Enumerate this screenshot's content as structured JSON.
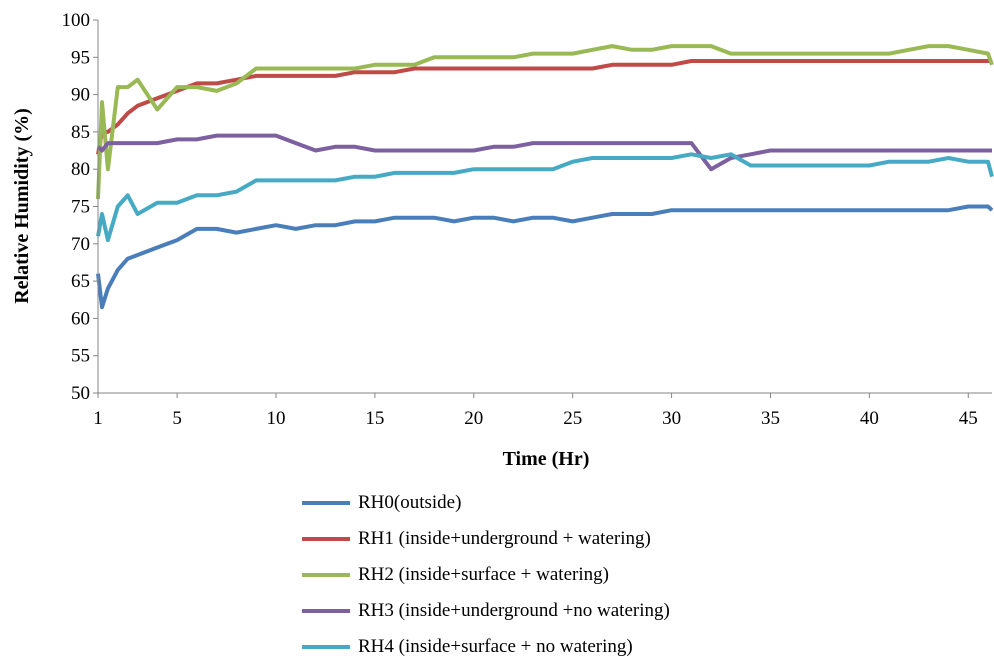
{
  "chart_data": {
    "type": "line",
    "title": "",
    "xlabel": "Time (Hr)",
    "ylabel": "Relative Humidity (%)",
    "xlim": [
      1,
      46.2
    ],
    "ylim": [
      50,
      100
    ],
    "x_ticks": [
      1,
      5,
      10,
      15,
      20,
      25,
      30,
      35,
      40,
      45
    ],
    "y_ticks": [
      50,
      55,
      60,
      65,
      70,
      75,
      80,
      85,
      90,
      95,
      100
    ],
    "grid": false,
    "legend_position": "bottom",
    "x": [
      1,
      1.2,
      1.5,
      2,
      2.5,
      3,
      4,
      5,
      6,
      7,
      8,
      9,
      10,
      11,
      12,
      13,
      14,
      15,
      16,
      17,
      18,
      19,
      20,
      21,
      22,
      23,
      24,
      25,
      26,
      27,
      28,
      29,
      30,
      31,
      32,
      33,
      34,
      35,
      36,
      37,
      38,
      39,
      40,
      41,
      42,
      43,
      44,
      45,
      46,
      46.2
    ],
    "series": [
      {
        "name": "RH0(outside)",
        "color": "#4a7ebb",
        "values": [
          66,
          61.5,
          64,
          66.5,
          68,
          68.5,
          69.5,
          70.5,
          72,
          72,
          71.5,
          72,
          72.5,
          72,
          72.5,
          72.5,
          73,
          73,
          73.5,
          73.5,
          73.5,
          73,
          73.5,
          73.5,
          73,
          73.5,
          73.5,
          73,
          73.5,
          74,
          74,
          74,
          74.5,
          74.5,
          74.5,
          74.5,
          74.5,
          74.5,
          74.5,
          74.5,
          74.5,
          74.5,
          74.5,
          74.5,
          74.5,
          74.5,
          74.5,
          75,
          75,
          74.5
        ]
      },
      {
        "name": "RH1 (inside+underground + watering)",
        "color": "#be4b48",
        "values": [
          82,
          85,
          85,
          86,
          87.5,
          88.5,
          89.5,
          90.5,
          91.5,
          91.5,
          92,
          92.5,
          92.5,
          92.5,
          92.5,
          92.5,
          93,
          93,
          93,
          93.5,
          93.5,
          93.5,
          93.5,
          93.5,
          93.5,
          93.5,
          93.5,
          93.5,
          93.5,
          94,
          94,
          94,
          94,
          94.5,
          94.5,
          94.5,
          94.5,
          94.5,
          94.5,
          94.5,
          94.5,
          94.5,
          94.5,
          94.5,
          94.5,
          94.5,
          94.5,
          94.5,
          94.5,
          94.5
        ]
      },
      {
        "name": "RH2 (inside+surface + watering)",
        "color": "#98b954",
        "values": [
          76,
          89,
          80,
          91,
          91,
          92,
          88,
          91,
          91,
          90.5,
          91.5,
          93.5,
          93.5,
          93.5,
          93.5,
          93.5,
          93.5,
          94,
          94,
          94,
          95,
          95,
          95,
          95,
          95,
          95.5,
          95.5,
          95.5,
          96,
          96.5,
          96,
          96,
          96.5,
          96.5,
          96.5,
          95.5,
          95.5,
          95.5,
          95.5,
          95.5,
          95.5,
          95.5,
          95.5,
          95.5,
          96,
          96.5,
          96.5,
          96,
          95.5,
          94
        ]
      },
      {
        "name": "RH3 (inside+underground +no watering)",
        "color": "#7d60a0",
        "values": [
          83,
          82.5,
          83.5,
          83.5,
          83.5,
          83.5,
          83.5,
          84,
          84,
          84.5,
          84.5,
          84.5,
          84.5,
          83.5,
          82.5,
          83,
          83,
          82.5,
          82.5,
          82.5,
          82.5,
          82.5,
          82.5,
          83,
          83,
          83.5,
          83.5,
          83.5,
          83.5,
          83.5,
          83.5,
          83.5,
          83.5,
          83.5,
          80,
          81.5,
          82,
          82.5,
          82.5,
          82.5,
          82.5,
          82.5,
          82.5,
          82.5,
          82.5,
          82.5,
          82.5,
          82.5,
          82.5,
          82.5
        ]
      },
      {
        "name": "RH4 (inside+surface + no watering)",
        "color": "#46aac5",
        "values": [
          71,
          74,
          70.5,
          75,
          76.5,
          74,
          75.5,
          75.5,
          76.5,
          76.5,
          77,
          78.5,
          78.5,
          78.5,
          78.5,
          78.5,
          79,
          79,
          79.5,
          79.5,
          79.5,
          79.5,
          80,
          80,
          80,
          80,
          80,
          81,
          81.5,
          81.5,
          81.5,
          81.5,
          81.5,
          82,
          81.5,
          82,
          80.5,
          80.5,
          80.5,
          80.5,
          80.5,
          80.5,
          80.5,
          81,
          81,
          81,
          81.5,
          81,
          81,
          79
        ]
      }
    ]
  }
}
